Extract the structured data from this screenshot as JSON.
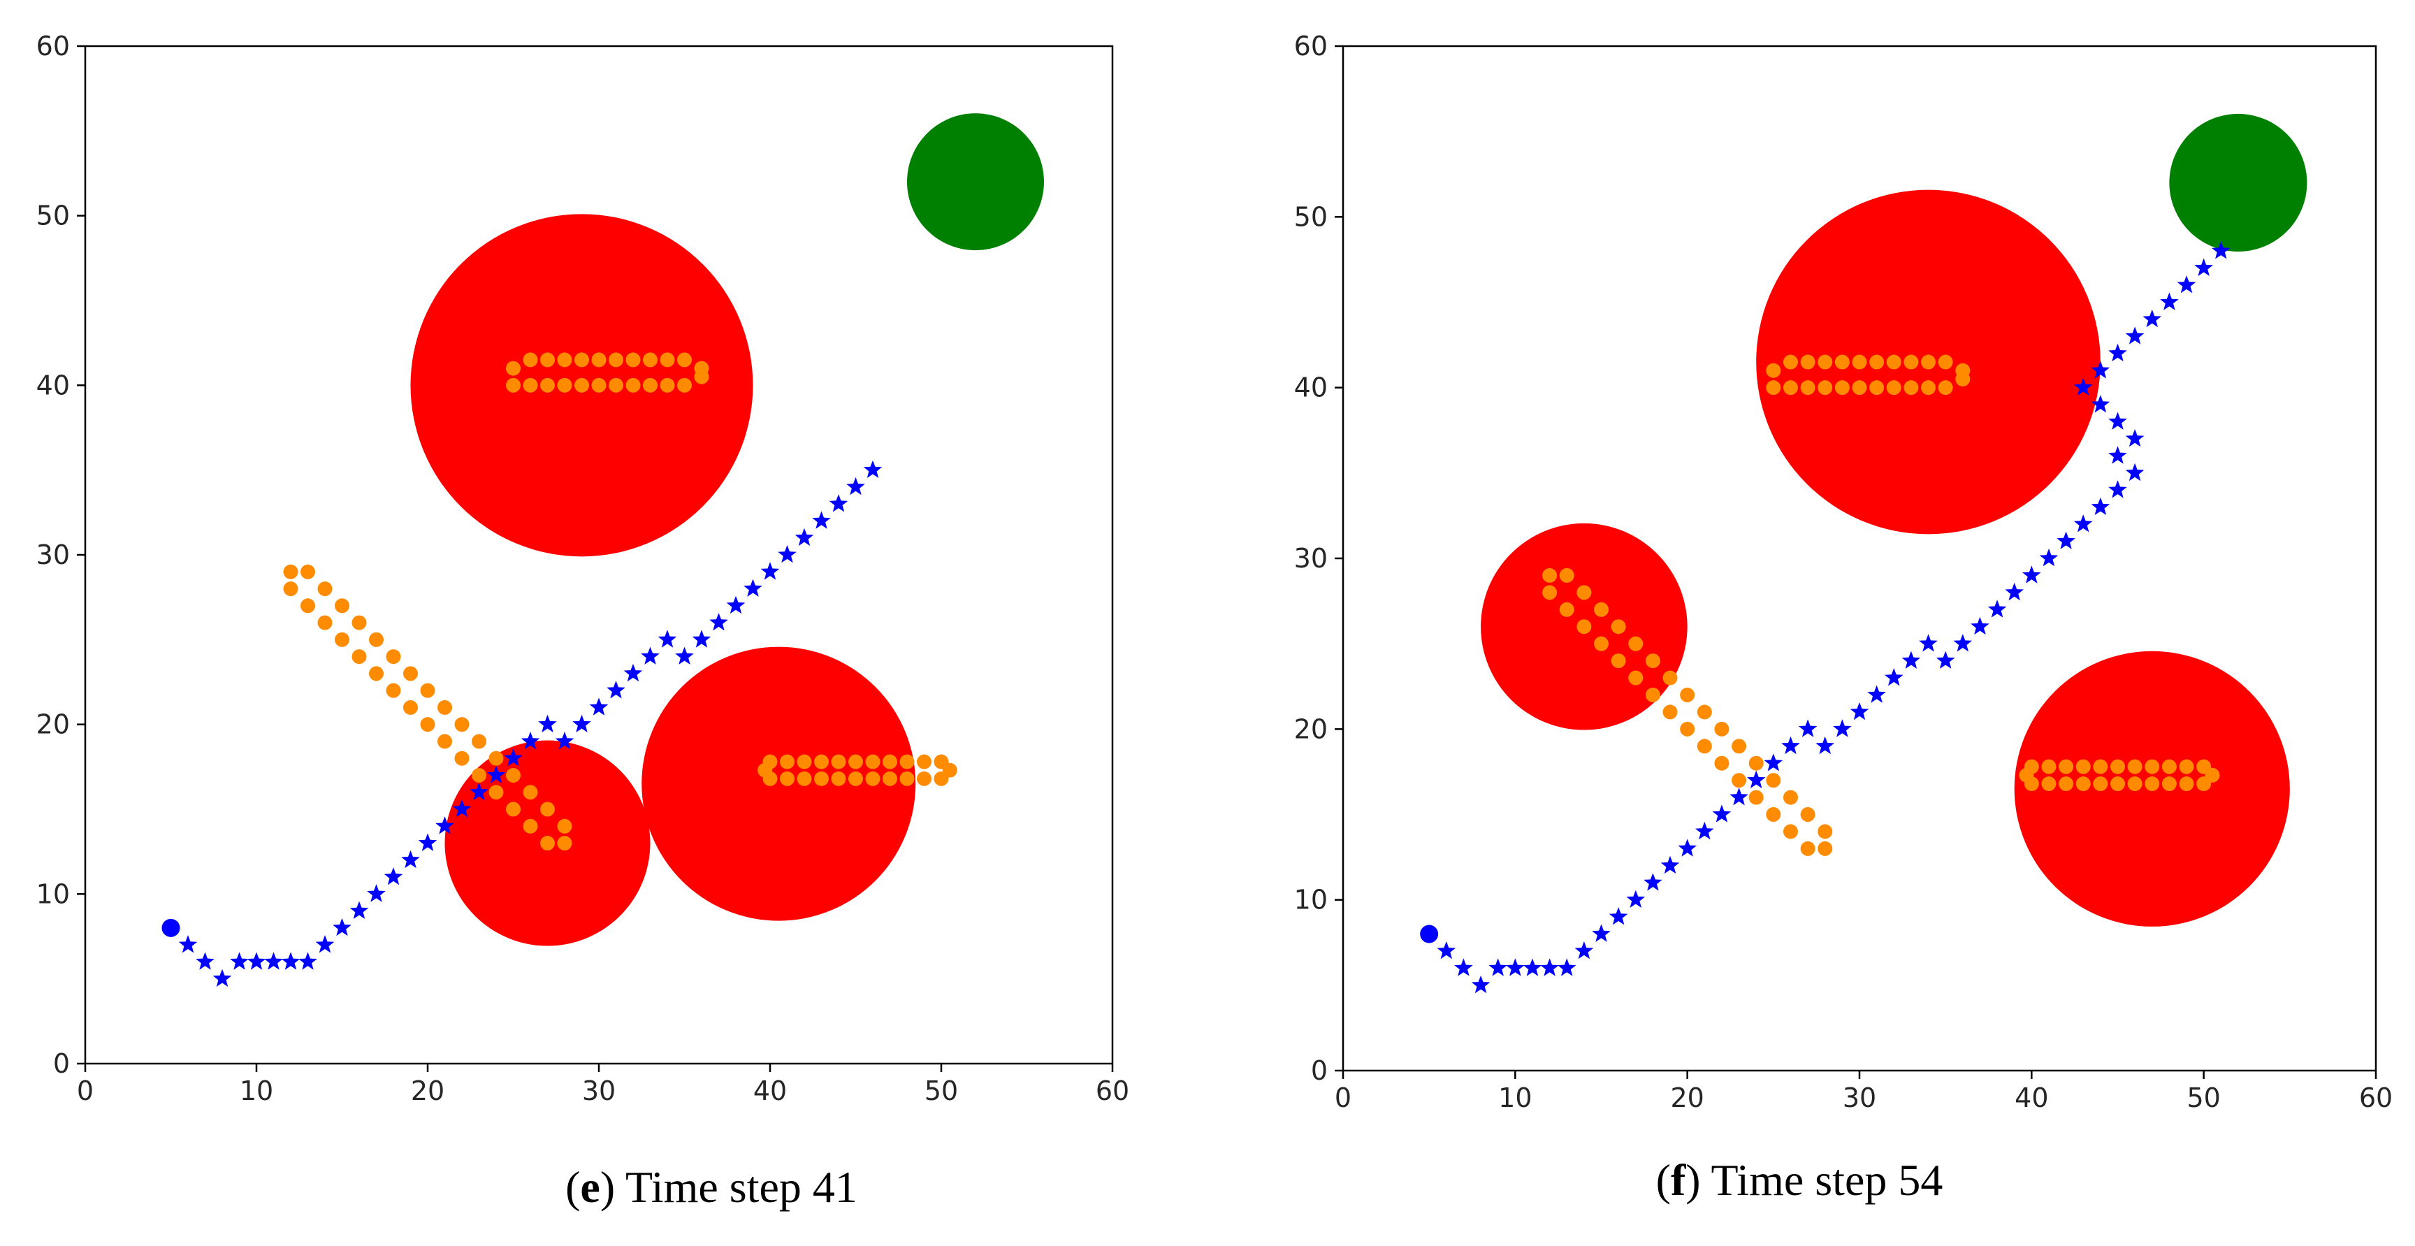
{
  "colors": {
    "goal": "#008000",
    "obstacle": "#ff0000",
    "predicted": "#ff8c00",
    "robot": "#0000ff",
    "axis": "#000000",
    "text": "#262626"
  },
  "chart_data": [
    {
      "type": "scatter",
      "panel": "e",
      "caption_letter": "e",
      "caption_text": "Time step 41",
      "xlim": [
        0,
        60
      ],
      "ylim": [
        0,
        60
      ],
      "xticks": [
        0,
        10,
        20,
        30,
        40,
        50,
        60
      ],
      "yticks": [
        0,
        10,
        20,
        30,
        40,
        50,
        60
      ],
      "goal": {
        "x": 52,
        "y": 52,
        "r": 4
      },
      "obstacles": [
        {
          "x": 29,
          "y": 40,
          "r": 10
        },
        {
          "x": 27,
          "y": 13,
          "r": 6
        },
        {
          "x": 40.5,
          "y": 16.5,
          "r": 8
        }
      ],
      "predicted_paths": [
        {
          "name": "obstacle-1-path",
          "points": [
            [
              25,
              41
            ],
            [
              25,
              40
            ],
            [
              26,
              41.5
            ],
            [
              26,
              40
            ],
            [
              27,
              41.5
            ],
            [
              27,
              40
            ],
            [
              28,
              41.5
            ],
            [
              28,
              40
            ],
            [
              29,
              41.5
            ],
            [
              29,
              40
            ],
            [
              30,
              41.5
            ],
            [
              30,
              40
            ],
            [
              31,
              41.5
            ],
            [
              31,
              40
            ],
            [
              32,
              41.5
            ],
            [
              32,
              40
            ],
            [
              33,
              41.5
            ],
            [
              33,
              40
            ],
            [
              34,
              41.5
            ],
            [
              34,
              40
            ],
            [
              35,
              41.5
            ],
            [
              35,
              40
            ],
            [
              36,
              41
            ],
            [
              36,
              40.5
            ]
          ]
        },
        {
          "name": "obstacle-2-path",
          "points": [
            [
              12,
              29
            ],
            [
              12,
              28
            ],
            [
              13,
              29
            ],
            [
              13,
              27
            ],
            [
              14,
              28
            ],
            [
              14,
              26
            ],
            [
              15,
              27
            ],
            [
              15,
              25
            ],
            [
              16,
              26
            ],
            [
              16,
              24
            ],
            [
              17,
              25
            ],
            [
              17,
              23
            ],
            [
              18,
              24
            ],
            [
              18,
              22
            ],
            [
              19,
              23
            ],
            [
              19,
              21
            ],
            [
              20,
              22
            ],
            [
              20,
              20
            ],
            [
              21,
              21
            ],
            [
              21,
              19
            ],
            [
              22,
              20
            ],
            [
              22,
              18
            ],
            [
              23,
              19
            ],
            [
              23,
              17
            ],
            [
              24,
              18
            ],
            [
              24,
              16
            ],
            [
              25,
              17
            ],
            [
              25,
              15
            ],
            [
              26,
              16
            ],
            [
              26,
              14
            ],
            [
              27,
              15
            ],
            [
              27,
              13
            ],
            [
              28,
              14
            ],
            [
              28,
              13
            ]
          ]
        },
        {
          "name": "obstacle-3-path",
          "points": [
            [
              39.7,
              17.3
            ],
            [
              40,
              17.8
            ],
            [
              40,
              16.8
            ],
            [
              41,
              17.8
            ],
            [
              41,
              16.8
            ],
            [
              42,
              17.8
            ],
            [
              42,
              16.8
            ],
            [
              43,
              17.8
            ],
            [
              43,
              16.8
            ],
            [
              44,
              17.8
            ],
            [
              44,
              16.8
            ],
            [
              45,
              17.8
            ],
            [
              45,
              16.8
            ],
            [
              46,
              17.8
            ],
            [
              46,
              16.8
            ],
            [
              47,
              17.8
            ],
            [
              47,
              16.8
            ],
            [
              48,
              17.8
            ],
            [
              48,
              16.8
            ],
            [
              49,
              17.8
            ],
            [
              49,
              16.8
            ],
            [
              50,
              17.8
            ],
            [
              50,
              16.8
            ],
            [
              50.5,
              17.3
            ]
          ]
        }
      ],
      "robot_start": {
        "x": 5,
        "y": 8
      },
      "robot_path": [
        [
          6,
          7
        ],
        [
          7,
          6
        ],
        [
          8,
          5
        ],
        [
          9,
          6
        ],
        [
          10,
          6
        ],
        [
          11,
          6
        ],
        [
          12,
          6
        ],
        [
          13,
          6
        ],
        [
          14,
          7
        ],
        [
          15,
          8
        ],
        [
          16,
          9
        ],
        [
          17,
          10
        ],
        [
          18,
          11
        ],
        [
          19,
          12
        ],
        [
          20,
          13
        ],
        [
          21,
          14
        ],
        [
          22,
          15
        ],
        [
          23,
          16
        ],
        [
          24,
          17
        ],
        [
          25,
          18
        ],
        [
          26,
          19
        ],
        [
          27,
          20
        ],
        [
          28,
          19
        ],
        [
          29,
          20
        ],
        [
          30,
          21
        ],
        [
          31,
          22
        ],
        [
          32,
          23
        ],
        [
          33,
          24
        ],
        [
          34,
          25
        ],
        [
          35,
          24
        ],
        [
          36,
          25
        ],
        [
          37,
          26
        ],
        [
          38,
          27
        ],
        [
          39,
          28
        ],
        [
          40,
          29
        ],
        [
          41,
          30
        ],
        [
          42,
          31
        ],
        [
          43,
          32
        ],
        [
          44,
          33
        ],
        [
          45,
          34
        ],
        [
          46,
          35
        ]
      ]
    },
    {
      "type": "scatter",
      "panel": "f",
      "caption_letter": "f",
      "caption_text": "Time step 54",
      "xlim": [
        0,
        60
      ],
      "ylim": [
        0,
        60
      ],
      "xticks": [
        0,
        10,
        20,
        30,
        40,
        50,
        60
      ],
      "yticks": [
        0,
        10,
        20,
        30,
        40,
        50,
        60
      ],
      "goal": {
        "x": 52,
        "y": 52,
        "r": 4
      },
      "obstacles": [
        {
          "x": 34,
          "y": 41.5,
          "r": 10
        },
        {
          "x": 14,
          "y": 26,
          "r": 6
        },
        {
          "x": 47,
          "y": 16.5,
          "r": 8
        }
      ],
      "predicted_paths": [
        {
          "name": "obstacle-1-path",
          "points": [
            [
              25,
              41
            ],
            [
              25,
              40
            ],
            [
              26,
              41.5
            ],
            [
              26,
              40
            ],
            [
              27,
              41.5
            ],
            [
              27,
              40
            ],
            [
              28,
              41.5
            ],
            [
              28,
              40
            ],
            [
              29,
              41.5
            ],
            [
              29,
              40
            ],
            [
              30,
              41.5
            ],
            [
              30,
              40
            ],
            [
              31,
              41.5
            ],
            [
              31,
              40
            ],
            [
              32,
              41.5
            ],
            [
              32,
              40
            ],
            [
              33,
              41.5
            ],
            [
              33,
              40
            ],
            [
              34,
              41.5
            ],
            [
              34,
              40
            ],
            [
              35,
              41.5
            ],
            [
              35,
              40
            ],
            [
              36,
              41
            ],
            [
              36,
              40.5
            ]
          ]
        },
        {
          "name": "obstacle-2-path",
          "points": [
            [
              12,
              29
            ],
            [
              12,
              28
            ],
            [
              13,
              29
            ],
            [
              13,
              27
            ],
            [
              14,
              28
            ],
            [
              14,
              26
            ],
            [
              15,
              27
            ],
            [
              15,
              25
            ],
            [
              16,
              26
            ],
            [
              16,
              24
            ],
            [
              17,
              25
            ],
            [
              17,
              23
            ],
            [
              18,
              24
            ],
            [
              18,
              22
            ],
            [
              19,
              23
            ],
            [
              19,
              21
            ],
            [
              20,
              22
            ],
            [
              20,
              20
            ],
            [
              21,
              21
            ],
            [
              21,
              19
            ],
            [
              22,
              20
            ],
            [
              22,
              18
            ],
            [
              23,
              19
            ],
            [
              23,
              17
            ],
            [
              24,
              18
            ],
            [
              24,
              16
            ],
            [
              25,
              17
            ],
            [
              25,
              15
            ],
            [
              26,
              16
            ],
            [
              26,
              14
            ],
            [
              27,
              15
            ],
            [
              27,
              13
            ],
            [
              28,
              14
            ],
            [
              28,
              13
            ]
          ]
        },
        {
          "name": "obstacle-3-path",
          "points": [
            [
              39.7,
              17.3
            ],
            [
              40,
              17.8
            ],
            [
              40,
              16.8
            ],
            [
              41,
              17.8
            ],
            [
              41,
              16.8
            ],
            [
              42,
              17.8
            ],
            [
              42,
              16.8
            ],
            [
              43,
              17.8
            ],
            [
              43,
              16.8
            ],
            [
              44,
              17.8
            ],
            [
              44,
              16.8
            ],
            [
              45,
              17.8
            ],
            [
              45,
              16.8
            ],
            [
              46,
              17.8
            ],
            [
              46,
              16.8
            ],
            [
              47,
              17.8
            ],
            [
              47,
              16.8
            ],
            [
              48,
              17.8
            ],
            [
              48,
              16.8
            ],
            [
              49,
              17.8
            ],
            [
              49,
              16.8
            ],
            [
              50,
              17.8
            ],
            [
              50,
              16.8
            ],
            [
              50.5,
              17.3
            ]
          ]
        }
      ],
      "robot_start": {
        "x": 5,
        "y": 8
      },
      "robot_path": [
        [
          6,
          7
        ],
        [
          7,
          6
        ],
        [
          8,
          5
        ],
        [
          9,
          6
        ],
        [
          10,
          6
        ],
        [
          11,
          6
        ],
        [
          12,
          6
        ],
        [
          13,
          6
        ],
        [
          14,
          7
        ],
        [
          15,
          8
        ],
        [
          16,
          9
        ],
        [
          17,
          10
        ],
        [
          18,
          11
        ],
        [
          19,
          12
        ],
        [
          20,
          13
        ],
        [
          21,
          14
        ],
        [
          22,
          15
        ],
        [
          23,
          16
        ],
        [
          24,
          17
        ],
        [
          25,
          18
        ],
        [
          26,
          19
        ],
        [
          27,
          20
        ],
        [
          28,
          19
        ],
        [
          29,
          20
        ],
        [
          30,
          21
        ],
        [
          31,
          22
        ],
        [
          32,
          23
        ],
        [
          33,
          24
        ],
        [
          34,
          25
        ],
        [
          35,
          24
        ],
        [
          36,
          25
        ],
        [
          37,
          26
        ],
        [
          38,
          27
        ],
        [
          39,
          28
        ],
        [
          40,
          29
        ],
        [
          41,
          30
        ],
        [
          42,
          31
        ],
        [
          43,
          32
        ],
        [
          44,
          33
        ],
        [
          45,
          34
        ],
        [
          46,
          35
        ],
        [
          46,
          37
        ],
        [
          45,
          36
        ],
        [
          45,
          38
        ],
        [
          44,
          39
        ],
        [
          43,
          40
        ],
        [
          44,
          41
        ],
        [
          45,
          42
        ],
        [
          46,
          43
        ],
        [
          47,
          44
        ],
        [
          48,
          45
        ],
        [
          49,
          46
        ],
        [
          50,
          47
        ],
        [
          51,
          48
        ]
      ]
    }
  ]
}
